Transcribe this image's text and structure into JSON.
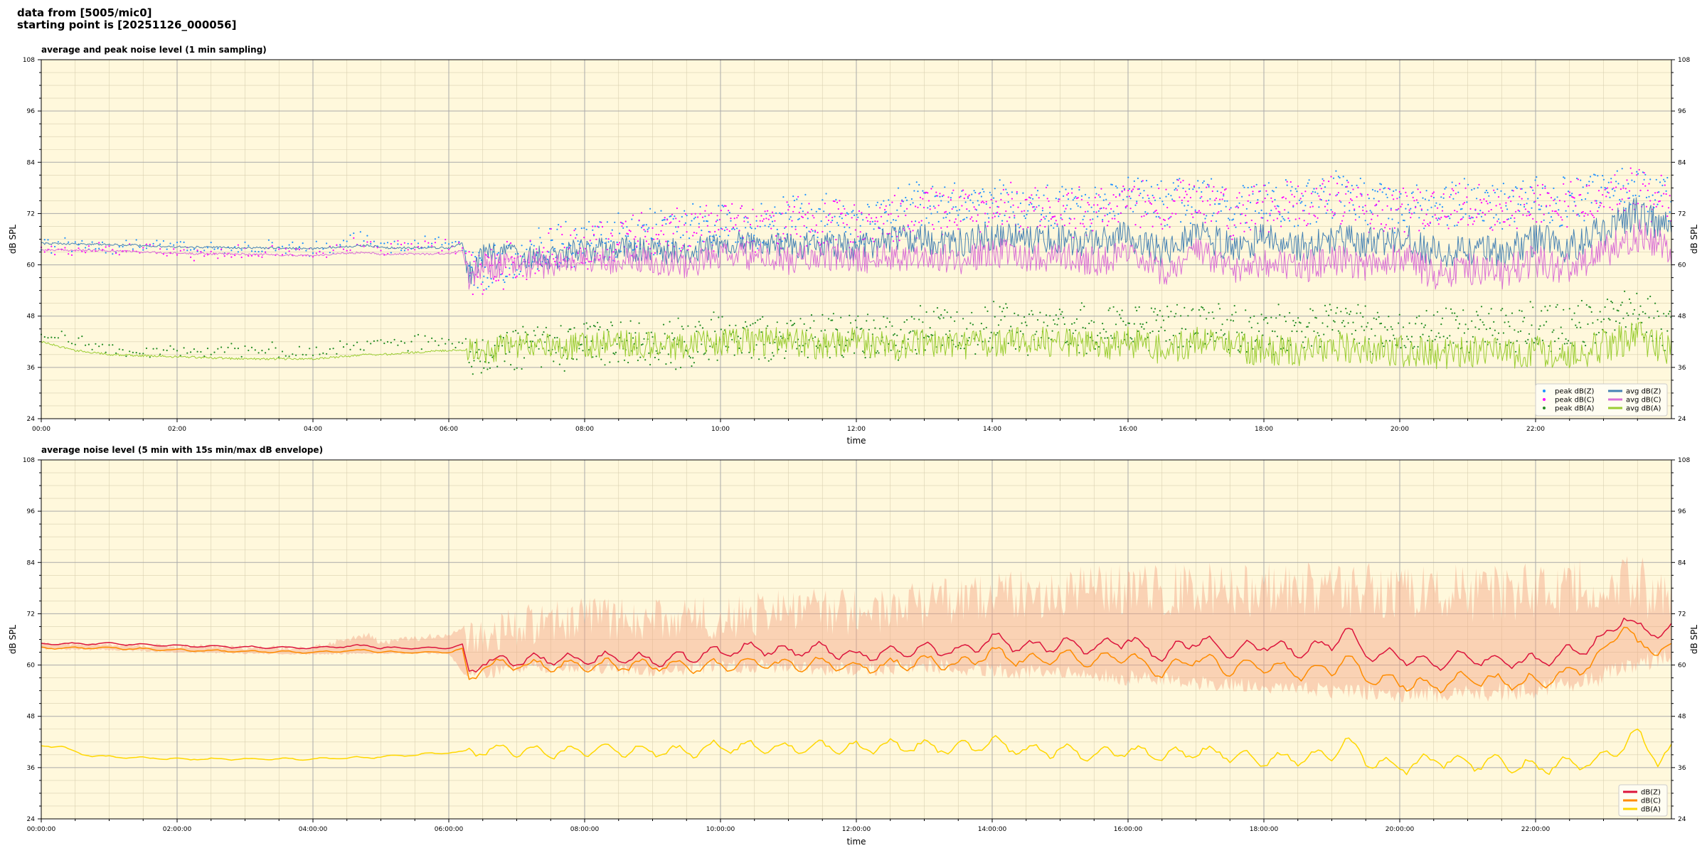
{
  "header": {
    "line1": "data from [5005/mic0]",
    "line2": "starting point is [20251126_000056]"
  },
  "colors": {
    "background": "#fff8dc",
    "avg_z": "#4682b4",
    "avg_c": "#da70d6",
    "avg_a": "#9acd32",
    "peak_z": "#1e90ff",
    "peak_c": "#ff00ff",
    "peak_a": "#228b22",
    "lower_z": "#dc143c",
    "lower_c": "#ff8c00",
    "lower_a": "#ffd700",
    "envelope": "#f4a582"
  },
  "chart_data": [
    {
      "type": "line",
      "title": "average and peak noise level (1 min sampling)",
      "xlabel": "time",
      "ylabel": "dB SPL",
      "xlim": [
        0,
        24
      ],
      "ylim": [
        24,
        108
      ],
      "x_ticks": [
        "00:00",
        "02:00",
        "04:00",
        "06:00",
        "08:00",
        "10:00",
        "12:00",
        "14:00",
        "16:00",
        "18:00",
        "20:00",
        "22:00"
      ],
      "y_ticks": [
        "24",
        "36",
        "48",
        "60",
        "72",
        "84",
        "96",
        "108"
      ],
      "grid": true,
      "legend_position": "bottom-right",
      "series": [
        {
          "name": "peak dB(Z)",
          "kind": "scatter",
          "color": "#1e90ff",
          "x": [
            0,
            1,
            2,
            3,
            4,
            4.8,
            5,
            6,
            6.5,
            7,
            7.5,
            8,
            8.5,
            9,
            9.5,
            10,
            10.5,
            11,
            11.5,
            12,
            12.5,
            13,
            13.5,
            14,
            14.5,
            15,
            15.5,
            16,
            16.5,
            17,
            17.5,
            18,
            18.5,
            19,
            19.5,
            20,
            20.5,
            21,
            21.5,
            22,
            22.5,
            23,
            23.5,
            24
          ],
          "y": [
            65,
            65,
            64.5,
            64.5,
            64.2,
            67,
            65,
            66,
            64,
            67,
            70,
            70,
            72,
            73,
            73,
            75,
            74,
            76,
            76,
            75,
            77,
            79,
            78,
            80,
            78,
            79,
            78,
            81,
            79,
            81,
            78,
            80,
            79,
            82,
            79,
            78,
            79,
            80,
            79,
            80,
            80,
            82,
            83,
            80
          ]
        },
        {
          "name": "peak dB(C)",
          "kind": "scatter",
          "color": "#ff00ff",
          "x": [
            0,
            1,
            2,
            3,
            4,
            4.8,
            5,
            6,
            6.5,
            7,
            7.5,
            8,
            8.5,
            9,
            9.5,
            10,
            10.5,
            11,
            11.5,
            12,
            12.5,
            13,
            13.5,
            14,
            14.5,
            15,
            15.5,
            16,
            16.5,
            17,
            17.5,
            18,
            18.5,
            19,
            19.5,
            20,
            20.5,
            21,
            21.5,
            22,
            22.5,
            23,
            23.5,
            24
          ],
          "y": [
            64,
            64,
            63.5,
            63.5,
            63.2,
            66,
            64,
            65,
            63,
            66,
            69,
            69,
            71,
            72,
            72,
            74,
            73,
            75,
            75,
            74,
            76,
            78,
            77,
            79,
            77,
            78,
            77,
            80,
            78,
            80,
            77,
            79,
            78,
            81,
            78,
            77,
            78,
            79,
            78,
            79,
            79,
            81,
            82,
            79
          ]
        },
        {
          "name": "peak dB(A)",
          "kind": "scatter",
          "color": "#228b22",
          "x": [
            0,
            1,
            2,
            3,
            4,
            4.8,
            5,
            6,
            6.5,
            7,
            7.5,
            8,
            8.5,
            9,
            9.5,
            10,
            10.5,
            11,
            11.5,
            12,
            12.5,
            13,
            13.5,
            14,
            14.5,
            15,
            15.5,
            16,
            16.5,
            17,
            17.5,
            18,
            18.5,
            19,
            19.5,
            20,
            20.5,
            21,
            21.5,
            22,
            22.5,
            23,
            23.5,
            24
          ],
          "y": [
            45,
            41,
            40,
            41,
            40,
            42,
            42,
            43,
            44,
            45,
            46,
            47,
            47,
            46,
            47,
            48,
            48,
            48,
            49,
            49,
            48,
            50,
            49,
            51,
            50,
            50,
            50,
            51,
            50,
            51,
            50,
            50,
            50,
            51,
            50,
            49,
            50,
            50,
            50,
            51,
            50,
            53,
            54,
            50
          ]
        },
        {
          "name": "avg dB(Z)",
          "kind": "line",
          "color": "#4682b4",
          "x": [
            0,
            1,
            2,
            3,
            4,
            4.8,
            5,
            6,
            6.2,
            6.3,
            6.5,
            7,
            7.5,
            8,
            8.5,
            9,
            9.5,
            10,
            10.5,
            11,
            11.5,
            12,
            12.5,
            13,
            13.5,
            14,
            14.5,
            15,
            15.5,
            16,
            16.5,
            17,
            17.5,
            18,
            18.5,
            19,
            19.5,
            20,
            20.5,
            21,
            21.5,
            22,
            22.5,
            23,
            23.5,
            24
          ],
          "y": [
            65,
            64.8,
            64.2,
            64,
            63.8,
            64.6,
            64,
            64,
            65,
            58,
            62,
            62,
            62,
            63,
            64,
            63,
            63,
            65,
            66,
            64,
            65,
            64,
            66,
            66,
            65,
            67,
            66,
            66,
            65,
            67,
            63,
            68,
            64,
            66,
            64,
            66,
            65,
            67,
            63,
            64,
            63,
            66,
            64,
            68,
            72,
            68
          ]
        },
        {
          "name": "avg dB(C)",
          "kind": "line",
          "color": "#da70d6",
          "x": [
            0,
            1,
            2,
            3,
            4,
            4.8,
            5,
            6,
            6.2,
            6.3,
            6.5,
            7,
            7.5,
            8,
            8.5,
            9,
            9.5,
            10,
            10.5,
            11,
            11.5,
            12,
            12.5,
            13,
            13.5,
            14,
            14.5,
            15,
            15.5,
            16,
            16.5,
            17,
            17.5,
            18,
            18.5,
            19,
            19.5,
            20,
            20.5,
            21,
            21.5,
            22,
            22.5,
            23,
            23.5,
            24
          ],
          "y": [
            63.5,
            63.3,
            62.7,
            62.5,
            62.2,
            63,
            62.5,
            62.6,
            63.5,
            56,
            60,
            60,
            60,
            61,
            61,
            61,
            60,
            62,
            62,
            61,
            62,
            61,
            62,
            62,
            61,
            63,
            62,
            62,
            61,
            62,
            58,
            63,
            59,
            61,
            59,
            61,
            60,
            62,
            58,
            59,
            58,
            61,
            59,
            63,
            67,
            63
          ]
        },
        {
          "name": "avg dB(A)",
          "kind": "line",
          "color": "#9acd32",
          "x": [
            0,
            0.5,
            1,
            2,
            3,
            4,
            4.8,
            5,
            6,
            6.5,
            7,
            7.5,
            8,
            8.5,
            9,
            9.5,
            10,
            10.5,
            11,
            11.5,
            12,
            12.5,
            13,
            13.5,
            14,
            14.5,
            15,
            15.5,
            16,
            16.5,
            17,
            17.5,
            18,
            18.5,
            19,
            19.5,
            20,
            20.5,
            21,
            21.5,
            22,
            22.5,
            23,
            23.5,
            24
          ],
          "y": [
            42,
            40,
            39,
            38.5,
            38,
            38,
            39,
            39,
            40,
            40,
            41,
            41,
            41,
            42,
            41,
            41,
            42,
            42,
            42,
            41,
            42,
            41,
            42,
            41,
            42,
            42,
            42,
            41,
            42,
            40,
            42,
            41,
            40,
            40,
            41,
            40,
            40,
            39,
            40,
            39,
            40,
            39,
            41,
            43,
            40
          ]
        }
      ]
    },
    {
      "type": "line",
      "title": "average noise level (5 min with 15s min/max dB envelope)",
      "xlabel": "time",
      "ylabel": "dB SPL",
      "xlim": [
        0,
        24
      ],
      "ylim": [
        24,
        108
      ],
      "x_ticks": [
        "00:00:00",
        "02:00:00",
        "04:00:00",
        "06:00:00",
        "08:00:00",
        "10:00:00",
        "12:00:00",
        "14:00:00",
        "16:00:00",
        "18:00:00",
        "20:00:00",
        "22:00:00"
      ],
      "y_ticks": [
        "24",
        "36",
        "48",
        "60",
        "72",
        "84",
        "96",
        "108"
      ],
      "grid": true,
      "legend_position": "bottom-right",
      "envelope": {
        "x": [
          0,
          1,
          2,
          3,
          4,
          4.8,
          5,
          6,
          6.3,
          7,
          8,
          9,
          10,
          11,
          12,
          13,
          14,
          15,
          16,
          17,
          18,
          19,
          20,
          21,
          22,
          23,
          23.5,
          24
        ],
        "low": [
          63.5,
          63.3,
          62.8,
          62.5,
          62.3,
          62.5,
          62.5,
          62.5,
          56,
          58,
          58,
          57,
          58,
          58,
          57,
          58,
          57,
          56,
          55,
          54,
          53,
          52,
          51,
          51,
          52,
          55,
          58,
          60
        ],
        "high": [
          65.5,
          65.3,
          65,
          64.8,
          64.6,
          68,
          66,
          68,
          70,
          74,
          76,
          76,
          76,
          78,
          78,
          80,
          82,
          83,
          84,
          84,
          84,
          84,
          84,
          84,
          84,
          86,
          86,
          84
        ]
      },
      "series": [
        {
          "name": "dB(Z)",
          "color": "#dc143c",
          "x": [
            0,
            1,
            2,
            3,
            4,
            4.8,
            5,
            6,
            6.2,
            6.3,
            6.5,
            7,
            7.5,
            8,
            8.5,
            9,
            9.5,
            10,
            10.5,
            11,
            11.5,
            12,
            12.5,
            13,
            13.5,
            14,
            14.5,
            15,
            15.5,
            16,
            16.5,
            17,
            17.5,
            18,
            18.5,
            19,
            19.2,
            19.5,
            20,
            20.5,
            21,
            21.5,
            22,
            22.5,
            23,
            23.3,
            23.5,
            24
          ],
          "y": [
            65,
            65,
            64.5,
            64.2,
            64,
            64.6,
            64,
            64,
            64.8,
            58,
            61,
            61,
            61.5,
            61,
            62,
            61,
            62,
            63,
            64,
            63,
            64,
            62,
            63,
            64,
            63,
            66,
            64,
            65,
            64,
            66,
            62,
            66,
            63,
            65,
            63,
            65,
            68,
            63,
            62,
            60,
            62,
            61,
            61,
            63,
            66,
            72,
            68,
            68
          ]
        },
        {
          "name": "dB(C)",
          "color": "#ff8c00",
          "x": [
            0,
            1,
            2,
            3,
            4,
            4.8,
            5,
            6,
            6.2,
            6.3,
            6.5,
            7,
            7.5,
            8,
            8.5,
            9,
            9.5,
            10,
            10.5,
            11,
            11.5,
            12,
            12.5,
            13,
            13.5,
            14,
            14.5,
            15,
            15.5,
            16,
            16.5,
            17,
            17.5,
            18,
            18.5,
            19,
            19.2,
            19.5,
            20,
            20.5,
            21,
            21.5,
            22,
            22.5,
            23,
            23.3,
            23.5,
            24
          ],
          "y": [
            64,
            64,
            63.5,
            63.2,
            63,
            63.5,
            63,
            63,
            63.8,
            56,
            60,
            60,
            60,
            60,
            60,
            60,
            59.5,
            60,
            60.5,
            60,
            60.5,
            59.5,
            60,
            61,
            60,
            63,
            61,
            62,
            61,
            62,
            58,
            62,
            59,
            60,
            58,
            59,
            62,
            57,
            56,
            55,
            57,
            56,
            56,
            58,
            62,
            70,
            64,
            64
          ]
        },
        {
          "name": "dB(A)",
          "color": "#ffd700",
          "x": [
            0,
            0.3,
            0.6,
            1,
            2,
            3,
            4,
            5,
            6,
            6.5,
            7,
            7.5,
            8,
            8.5,
            9,
            9.5,
            10,
            10.5,
            11,
            11.5,
            12,
            12.5,
            13,
            13.5,
            14,
            14.5,
            15,
            15.5,
            16,
            16.5,
            17,
            17.5,
            18,
            18.5,
            19,
            19.2,
            19.5,
            20,
            20.5,
            21,
            21.5,
            22,
            22.5,
            23,
            23.5,
            23.8,
            24
          ],
          "y": [
            41,
            41,
            39,
            38.5,
            38,
            38,
            38,
            38.5,
            39.5,
            40,
            40,
            39.5,
            40,
            40,
            40,
            39.5,
            41,
            41,
            40.5,
            41,
            40.5,
            41,
            41,
            40.5,
            42,
            40,
            40,
            39,
            40,
            38.5,
            40,
            39,
            38,
            38,
            39,
            42,
            38,
            36,
            38,
            37,
            37,
            36,
            37,
            38,
            44,
            38,
            40
          ]
        }
      ]
    }
  ]
}
